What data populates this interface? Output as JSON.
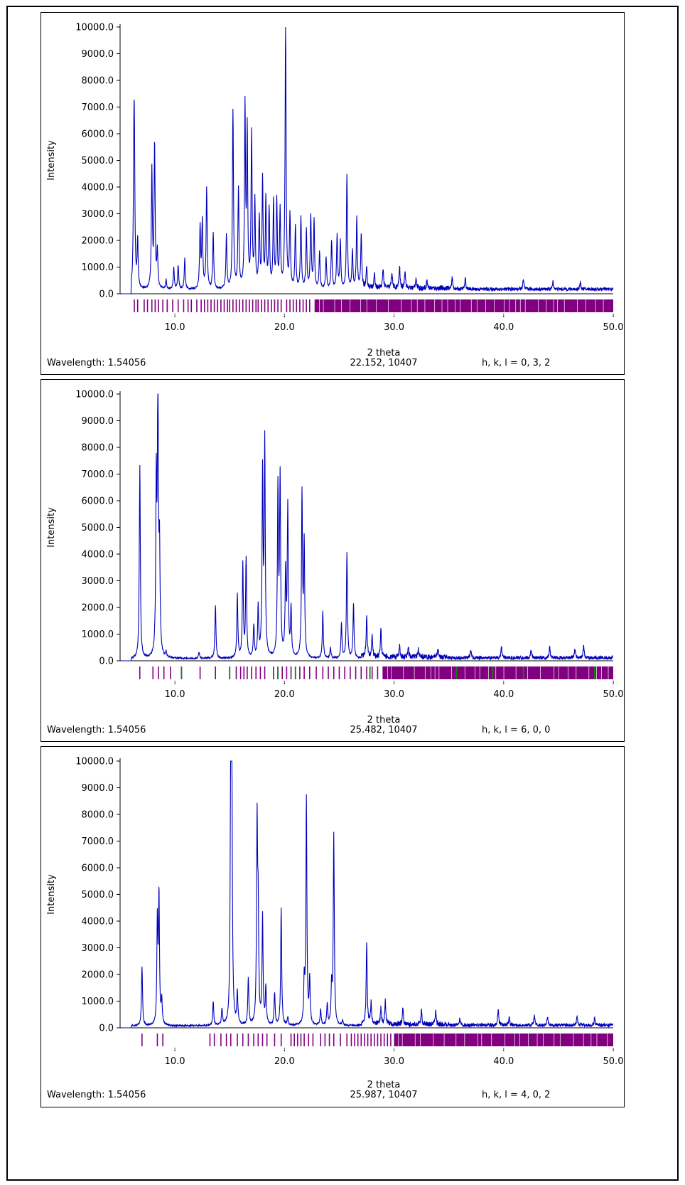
{
  "chart_data": [
    {
      "type": "line",
      "ylabel": "Intensity",
      "xlabel": "2 theta",
      "xlim": [
        5.0,
        50.0
      ],
      "ylim": [
        0.0,
        10000.0
      ],
      "yticks": [
        "0.0",
        "1000.0",
        "2000.0",
        "3000.0",
        "4000.0",
        "5000.0",
        "6000.0",
        "7000.0",
        "8000.0",
        "9000.0",
        "10000.0"
      ],
      "xticks": [
        "10.0",
        "20.0",
        "30.0",
        "40.0",
        "50.0"
      ],
      "footer": {
        "wavelength": "Wavelength: 1.54056",
        "cursor": "22.152, 10407",
        "hkl": "h, k, l = 0, 3, 2"
      },
      "background": 120,
      "peaks": [
        {
          "x": 6.3,
          "y": 5100
        },
        {
          "x": 6.25,
          "y": 3300
        },
        {
          "x": 6.6,
          "y": 1800
        },
        {
          "x": 7.9,
          "y": 4450
        },
        {
          "x": 8.15,
          "y": 5400
        },
        {
          "x": 8.4,
          "y": 1400
        },
        {
          "x": 9.2,
          "y": 350
        },
        {
          "x": 9.9,
          "y": 800
        },
        {
          "x": 10.3,
          "y": 900
        },
        {
          "x": 10.9,
          "y": 1150
        },
        {
          "x": 12.3,
          "y": 2300
        },
        {
          "x": 12.5,
          "y": 2500
        },
        {
          "x": 12.9,
          "y": 3750
        },
        {
          "x": 13.5,
          "y": 2100
        },
        {
          "x": 14.7,
          "y": 2000
        },
        {
          "x": 15.3,
          "y": 6700
        },
        {
          "x": 15.8,
          "y": 3700
        },
        {
          "x": 16.4,
          "y": 6700
        },
        {
          "x": 16.6,
          "y": 5800
        },
        {
          "x": 17.0,
          "y": 5750
        },
        {
          "x": 17.3,
          "y": 3200
        },
        {
          "x": 17.7,
          "y": 2600
        },
        {
          "x": 18.0,
          "y": 4100
        },
        {
          "x": 18.3,
          "y": 3300
        },
        {
          "x": 18.6,
          "y": 2900
        },
        {
          "x": 19.0,
          "y": 3250
        },
        {
          "x": 19.3,
          "y": 3250
        },
        {
          "x": 19.6,
          "y": 2900
        },
        {
          "x": 20.1,
          "y": 10000
        },
        {
          "x": 20.5,
          "y": 2700
        },
        {
          "x": 21.0,
          "y": 2300
        },
        {
          "x": 21.5,
          "y": 2700
        },
        {
          "x": 22.0,
          "y": 2200
        },
        {
          "x": 22.4,
          "y": 2700
        },
        {
          "x": 22.7,
          "y": 2600
        },
        {
          "x": 23.2,
          "y": 1400
        },
        {
          "x": 23.8,
          "y": 1200
        },
        {
          "x": 24.3,
          "y": 1800
        },
        {
          "x": 24.8,
          "y": 2000
        },
        {
          "x": 25.1,
          "y": 1800
        },
        {
          "x": 25.7,
          "y": 4300
        },
        {
          "x": 26.2,
          "y": 1400
        },
        {
          "x": 26.6,
          "y": 2700
        },
        {
          "x": 27.0,
          "y": 2000
        },
        {
          "x": 27.5,
          "y": 700
        },
        {
          "x": 28.2,
          "y": 500
        },
        {
          "x": 29.0,
          "y": 700
        },
        {
          "x": 29.8,
          "y": 600
        },
        {
          "x": 30.5,
          "y": 800
        },
        {
          "x": 31.0,
          "y": 700
        },
        {
          "x": 32.0,
          "y": 400
        },
        {
          "x": 33.0,
          "y": 300
        },
        {
          "x": 35.3,
          "y": 450
        },
        {
          "x": 36.5,
          "y": 400
        },
        {
          "x": 41.8,
          "y": 350
        },
        {
          "x": 44.5,
          "y": 280
        },
        {
          "x": 47.0,
          "y": 250
        }
      ],
      "ticks": [
        6.3,
        6.6,
        7.2,
        7.5,
        7.9,
        8.2,
        8.5,
        8.9,
        9.3,
        9.8,
        10.3,
        10.8,
        11.2,
        11.5,
        12.0,
        12.4,
        12.7,
        13.0,
        13.3,
        13.6,
        13.9,
        14.2,
        14.5,
        14.8,
        15.0,
        15.3,
        15.6,
        15.9,
        16.2,
        16.5,
        16.8,
        17.1,
        17.4,
        17.6,
        17.9,
        18.2,
        18.5,
        18.8,
        19.1,
        19.4,
        19.7,
        20.2,
        20.5,
        20.8,
        21.1,
        21.4,
        21.7,
        22.0,
        22.3,
        22.8,
        23.3,
        23.8,
        24.3,
        24.8,
        25.3,
        25.8,
        26.3,
        26.8,
        27.3,
        27.8,
        28.3,
        28.8,
        29.3,
        29.8,
        30.3,
        30.8,
        31.3,
        31.8,
        32.3,
        32.8,
        33.3,
        33.8,
        34.5
      ],
      "dense_band": [
        22.8,
        50.0
      ]
    },
    {
      "type": "line",
      "ylabel": "Intensity",
      "xlabel": "2 theta",
      "xlim": [
        5.0,
        50.0
      ],
      "ylim": [
        0.0,
        10000.0
      ],
      "yticks": [
        "0.0",
        "1000.0",
        "2000.0",
        "3000.0",
        "4000.0",
        "5000.0",
        "6000.0",
        "7000.0",
        "8000.0",
        "9000.0",
        "10000.0"
      ],
      "xticks": [
        "10.0",
        "20.0",
        "30.0",
        "40.0",
        "50.0"
      ],
      "footer": {
        "wavelength": "Wavelength: 1.54056",
        "cursor": "25.482, 10407",
        "hkl": "h, k, l = 6, 0, 0"
      },
      "background": 50,
      "peaks": [
        {
          "x": 6.8,
          "y": 7200
        },
        {
          "x": 8.3,
          "y": 6400
        },
        {
          "x": 8.45,
          "y": 10000
        },
        {
          "x": 8.6,
          "y": 3800
        },
        {
          "x": 9.2,
          "y": 200
        },
        {
          "x": 12.2,
          "y": 250
        },
        {
          "x": 13.7,
          "y": 2000
        },
        {
          "x": 15.7,
          "y": 2400
        },
        {
          "x": 16.2,
          "y": 3500
        },
        {
          "x": 16.5,
          "y": 3700
        },
        {
          "x": 17.2,
          "y": 1200
        },
        {
          "x": 17.6,
          "y": 1900
        },
        {
          "x": 18.2,
          "y": 8000
        },
        {
          "x": 18.0,
          "y": 6800
        },
        {
          "x": 19.4,
          "y": 6300
        },
        {
          "x": 19.6,
          "y": 6650
        },
        {
          "x": 20.1,
          "y": 3100
        },
        {
          "x": 20.3,
          "y": 5600
        },
        {
          "x": 20.6,
          "y": 1800
        },
        {
          "x": 21.6,
          "y": 6150
        },
        {
          "x": 21.8,
          "y": 4250
        },
        {
          "x": 23.5,
          "y": 1750
        },
        {
          "x": 24.2,
          "y": 400
        },
        {
          "x": 25.2,
          "y": 1300
        },
        {
          "x": 25.7,
          "y": 3950
        },
        {
          "x": 26.3,
          "y": 2000
        },
        {
          "x": 27.5,
          "y": 1500
        },
        {
          "x": 28.0,
          "y": 800
        },
        {
          "x": 28.8,
          "y": 1000
        },
        {
          "x": 30.5,
          "y": 400
        },
        {
          "x": 31.3,
          "y": 350
        },
        {
          "x": 32.2,
          "y": 300
        },
        {
          "x": 34.0,
          "y": 300
        },
        {
          "x": 37.0,
          "y": 300
        },
        {
          "x": 39.8,
          "y": 400
        },
        {
          "x": 42.5,
          "y": 300
        },
        {
          "x": 44.2,
          "y": 400
        },
        {
          "x": 46.5,
          "y": 350
        },
        {
          "x": 47.3,
          "y": 450
        }
      ],
      "ticks": [
        6.8,
        8.0,
        8.5,
        9.0,
        9.6,
        10.6,
        12.3,
        13.7,
        15.0,
        15.6,
        16.0,
        16.3,
        16.6,
        17.0,
        17.4,
        17.8,
        18.2,
        19.0,
        19.4,
        19.8,
        20.2,
        20.6,
        21.0,
        21.4,
        21.8,
        22.3,
        22.9,
        23.5,
        24.0,
        24.5,
        25.0,
        25.5,
        26.0,
        26.5,
        27.0,
        27.5,
        28.0,
        28.5,
        29.0
      ],
      "dense_band": [
        29.0,
        50.0
      ],
      "green_ticks": [
        10.6,
        15.0,
        19.4,
        21.0,
        27.8,
        35.7,
        39.0,
        41.8,
        48.3
      ]
    },
    {
      "type": "line",
      "ylabel": "Intensity",
      "xlabel": "2 theta",
      "xlim": [
        5.0,
        50.0
      ],
      "ylim": [
        0.0,
        10000.0
      ],
      "yticks": [
        "0.0",
        "1000.0",
        "2000.0",
        "3000.0",
        "4000.0",
        "5000.0",
        "6000.0",
        "7000.0",
        "8000.0",
        "9000.0",
        "10000.0"
      ],
      "xticks": [
        "10.0",
        "20.0",
        "30.0",
        "40.0",
        "50.0"
      ],
      "footer": {
        "wavelength": "Wavelength: 1.54056",
        "cursor": "25.987, 10407",
        "hkl": "h, k, l = 4, 0, 2"
      },
      "background": 40,
      "peaks": [
        {
          "x": 7.0,
          "y": 2200
        },
        {
          "x": 8.4,
          "y": 3800
        },
        {
          "x": 8.55,
          "y": 4800
        },
        {
          "x": 8.8,
          "y": 900
        },
        {
          "x": 13.5,
          "y": 900
        },
        {
          "x": 14.3,
          "y": 600
        },
        {
          "x": 15.1,
          "y": 10000
        },
        {
          "x": 15.2,
          "y": 8300
        },
        {
          "x": 15.7,
          "y": 1200
        },
        {
          "x": 16.7,
          "y": 1750
        },
        {
          "x": 17.5,
          "y": 7350
        },
        {
          "x": 17.6,
          "y": 3900
        },
        {
          "x": 18.0,
          "y": 4050
        },
        {
          "x": 18.3,
          "y": 1400
        },
        {
          "x": 19.1,
          "y": 1200
        },
        {
          "x": 19.7,
          "y": 4400
        },
        {
          "x": 20.3,
          "y": 300
        },
        {
          "x": 21.8,
          "y": 1600
        },
        {
          "x": 22.0,
          "y": 8500
        },
        {
          "x": 22.3,
          "y": 1700
        },
        {
          "x": 23.3,
          "y": 600
        },
        {
          "x": 23.9,
          "y": 800
        },
        {
          "x": 24.5,
          "y": 7150
        },
        {
          "x": 24.3,
          "y": 1400
        },
        {
          "x": 25.3,
          "y": 200
        },
        {
          "x": 27.5,
          "y": 3050
        },
        {
          "x": 27.9,
          "y": 800
        },
        {
          "x": 28.8,
          "y": 600
        },
        {
          "x": 29.2,
          "y": 900
        },
        {
          "x": 30.8,
          "y": 600
        },
        {
          "x": 32.5,
          "y": 500
        },
        {
          "x": 33.8,
          "y": 500
        },
        {
          "x": 36.0,
          "y": 250
        },
        {
          "x": 39.5,
          "y": 600
        },
        {
          "x": 40.5,
          "y": 300
        },
        {
          "x": 42.8,
          "y": 400
        },
        {
          "x": 44.0,
          "y": 300
        },
        {
          "x": 46.7,
          "y": 300
        },
        {
          "x": 48.3,
          "y": 250
        }
      ],
      "ticks": [
        7.0,
        8.4,
        8.9,
        13.2,
        13.6,
        14.2,
        14.7,
        15.1,
        15.7,
        16.2,
        16.7,
        17.2,
        17.6,
        18.0,
        18.4,
        19.1,
        19.7,
        20.6,
        20.9,
        21.2,
        21.5,
        21.8,
        22.2,
        22.6,
        23.3,
        23.7,
        24.1,
        24.5,
        25.1,
        25.7,
        26.1,
        26.4,
        26.7,
        27.0,
        27.3,
        27.6,
        27.9,
        28.2,
        28.5,
        28.8,
        29.1,
        29.4,
        29.7
      ],
      "dense_band": [
        30.0,
        50.0
      ]
    }
  ]
}
